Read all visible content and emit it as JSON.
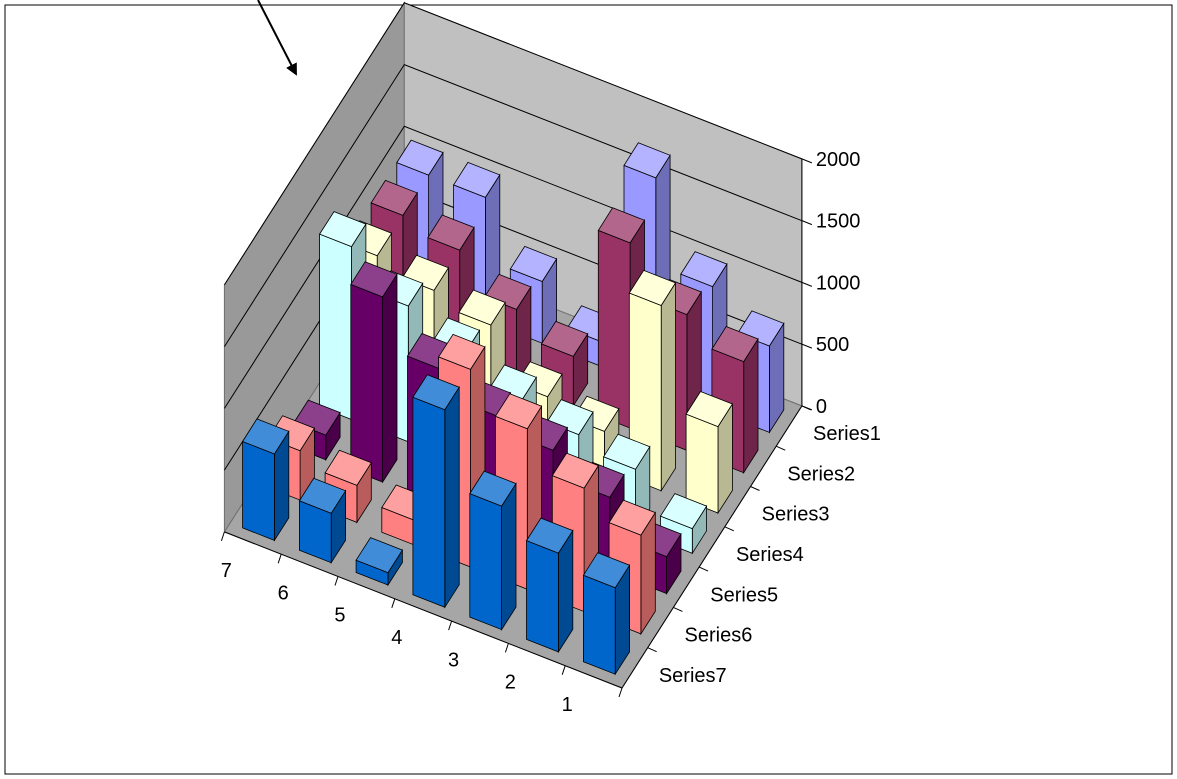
{
  "chart_data": {
    "type": "bar3d",
    "title": "",
    "categories": [
      "1",
      "2",
      "3",
      "4",
      "5",
      "6",
      "7"
    ],
    "series": [
      {
        "name": "Series1",
        "color": "#9999ff",
        "values": [
          700,
          1000,
          1700,
          200,
          500,
          1000,
          1000
        ]
      },
      {
        "name": "Series2",
        "color": "#993366",
        "values": [
          900,
          1100,
          1500,
          400,
          600,
          900,
          1000
        ]
      },
      {
        "name": "Series3",
        "color": "#ffffcc",
        "values": [
          700,
          1500,
          300,
          400,
          800,
          900,
          1000
        ]
      },
      {
        "name": "Series4",
        "color": "#ccffff",
        "values": [
          200,
          500,
          600,
          700,
          900,
          1100,
          1400
        ]
      },
      {
        "name": "Series5",
        "color": "#660066",
        "values": [
          300,
          600,
          800,
          900,
          1100,
          1500,
          200
        ]
      },
      {
        "name": "Series6",
        "color": "#ff8080",
        "values": [
          800,
          1000,
          1300,
          1600,
          200,
          300,
          400
        ]
      },
      {
        "name": "Series7",
        "color": "#0066cc",
        "values": [
          700,
          800,
          1000,
          1600,
          100,
          400,
          700
        ]
      }
    ],
    "z_ticks": [
      "0",
      "500",
      "1000",
      "1500",
      "2000"
    ],
    "zlim": [
      0,
      2000
    ],
    "grid": true,
    "legend": "none"
  }
}
